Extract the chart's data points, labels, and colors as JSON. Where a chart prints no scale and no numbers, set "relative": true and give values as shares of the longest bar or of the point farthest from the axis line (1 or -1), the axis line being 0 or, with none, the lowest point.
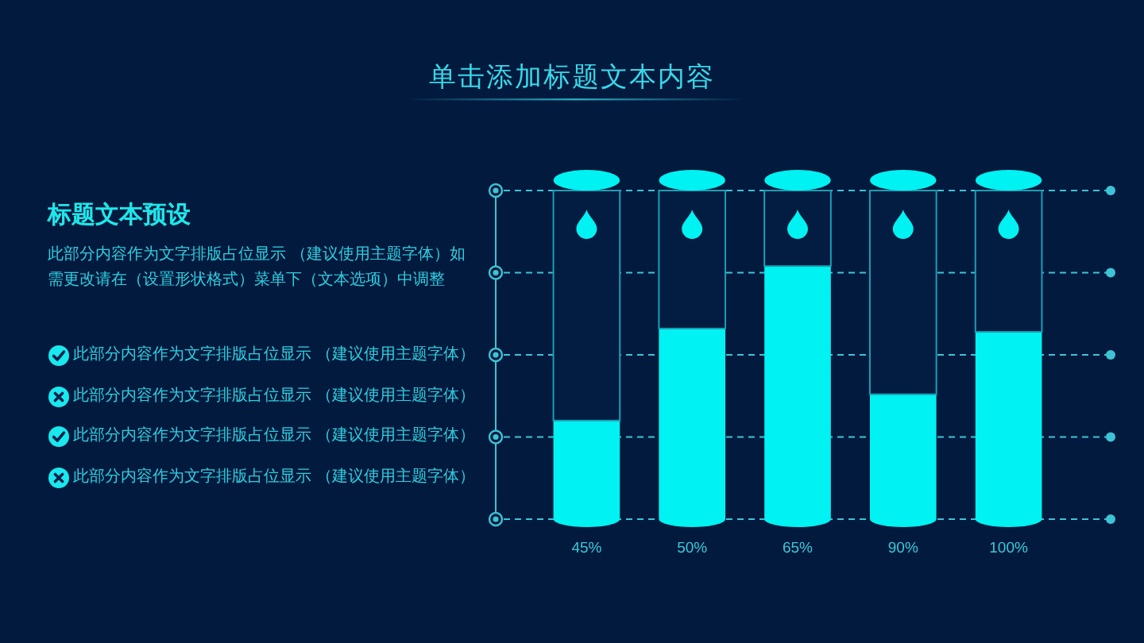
{
  "chart_data": [
    {
      "type": "other",
      "title": "标题文本预设",
      "subtitle": "此部分内容作为文字排版占位显示 （建议使用主题字体）如需更改请在（设置形状格式）菜单下（文本选项）中调整",
      "annotations": [
        "此部分内容作为文字排版占位显示 （建议使用主题字体）",
        "此部分内容作为文字排版占位显示 （建议使用主题字体）",
        "此部分内容作为文字排版占位显示 （建议使用主题字体）",
        "此部分内容作为文字排版占位显示 （建议使用主题字体）"
      ]
    },
    {
      "type": "bar",
      "title": "单击添加标题文本内容",
      "categories": [
        "45%",
        "50%",
        "65%",
        "90%",
        "100%"
      ],
      "relative": true,
      "stacked": true,
      "series": [
        {
          "color": "#00f2f2",
          "values": [
            0.3,
            0.58,
            0.77,
            0.38,
            0.57
          ]
        },
        {
          "color": "#031c42",
          "values": [
            0.7,
            0.42,
            0.23,
            0.62,
            0.43
          ]
        }
      ],
      "ref_lines": [
        {
          "axis": "y",
          "value": 0,
          "color": "#3cc4d6",
          "line_style": "dashed"
        },
        {
          "axis": "y",
          "value": 0.25,
          "color": "#3cc4d6",
          "line_style": "dashed"
        },
        {
          "axis": "y",
          "value": 0.5,
          "color": "#3cc4d6",
          "line_style": "dashed"
        },
        {
          "axis": "y",
          "value": 0.75,
          "color": "#3cc4d6",
          "line_style": "dashed"
        },
        {
          "axis": "y",
          "value": 1,
          "color": "#3cc4d6",
          "line_style": "dashed"
        }
      ]
    }
  ]
}
